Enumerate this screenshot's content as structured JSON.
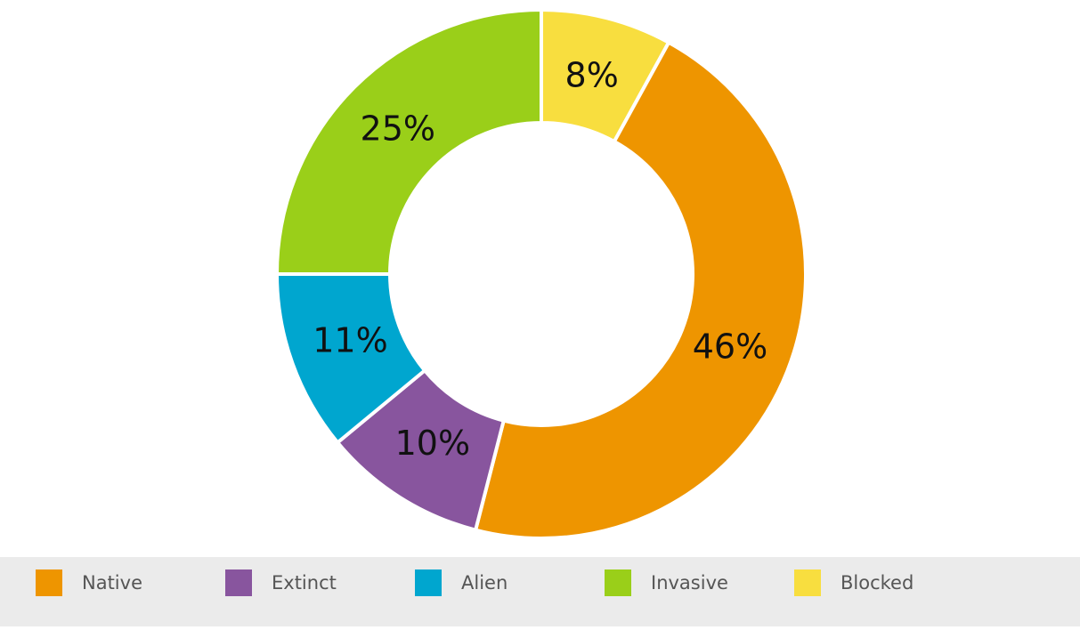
{
  "chart_data": {
    "type": "donut",
    "categories": [
      "Native",
      "Extinct",
      "Alien",
      "Invasive",
      "Blocked"
    ],
    "values": [
      46,
      10,
      11,
      25,
      8
    ],
    "value_labels": [
      "46%",
      "10%",
      "11%",
      "25%",
      "8%"
    ],
    "colors": [
      "#ee9500",
      "#88559e",
      "#00a6cf",
      "#9acf19",
      "#f8de3f"
    ],
    "legend": "bottom"
  }
}
